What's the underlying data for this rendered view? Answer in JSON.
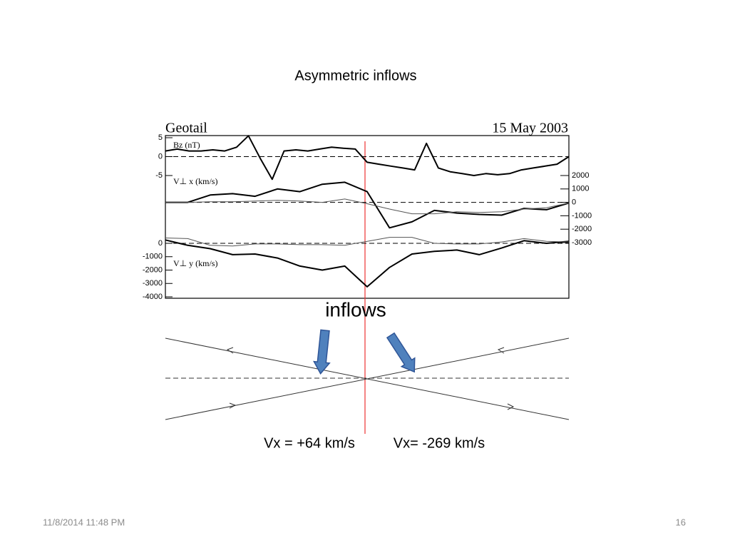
{
  "title": "Asymmetric inflows",
  "figure": {
    "header_left": "Geotail",
    "header_right": "15 May 2003"
  },
  "chart_data": [
    {
      "type": "line",
      "label": "Bz (nT)",
      "ylim": [
        -5,
        5
      ],
      "yticks": [
        -5,
        0,
        5
      ],
      "axis_side": "left",
      "series": [
        {
          "color": "#000000",
          "values": [
            1.5,
            2,
            1.5,
            1.5,
            1.8,
            1.5,
            2.5,
            5.5,
            -0.5,
            -6,
            1.5,
            1.8,
            1.5,
            2,
            2.5,
            2.2,
            2,
            -1.5,
            -2,
            -2.5,
            -3,
            -3.5,
            3.5,
            -3,
            -4,
            -4.5,
            -5,
            -4.5,
            -4.8,
            -4.5,
            -3.5,
            -3,
            -2.5,
            -2,
            0
          ]
        }
      ]
    },
    {
      "type": "line",
      "label": "V⊥ x (km/s)",
      "ylim": [
        -3000,
        2000
      ],
      "yticks": [
        -3000,
        -2000,
        -1000,
        0,
        1000,
        2000
      ],
      "axis_side": "right",
      "series": [
        {
          "color": "#000000",
          "values": [
            0,
            0,
            550,
            650,
            450,
            1000,
            800,
            1350,
            1500,
            800,
            -1900,
            -1450,
            -600,
            -800,
            -900,
            -950,
            -450,
            -550,
            -50
          ]
        },
        {
          "color": "#555555",
          "values": [
            0,
            0,
            50,
            50,
            100,
            150,
            100,
            0,
            250,
            -100,
            -500,
            -850,
            -850,
            -700,
            -750,
            -700,
            -500,
            -400,
            -50
          ]
        }
      ]
    },
    {
      "type": "line",
      "label": "V⊥ y (km/s)",
      "ylim": [
        -4000,
        0
      ],
      "yticks": [
        -4000,
        -3000,
        -2000,
        -1000,
        0
      ],
      "axis_side": "left",
      "series": [
        {
          "color": "#000000",
          "values": [
            250,
            -150,
            -400,
            -850,
            -800,
            -1100,
            -1700,
            -2000,
            -1700,
            -3250,
            -1800,
            -800,
            -600,
            -500,
            -850,
            -350,
            200,
            0,
            150
          ]
        },
        {
          "color": "#555555",
          "values": [
            400,
            350,
            -150,
            -200,
            -50,
            -50,
            -100,
            -100,
            -150,
            150,
            450,
            450,
            0,
            -50,
            -50,
            100,
            350,
            150,
            100
          ]
        }
      ]
    }
  ],
  "inflows_label": "inflows",
  "vx_left": "Vx = +64 km/s",
  "vx_right": "Vx= -269 km/s",
  "footer": {
    "date": "11/8/2014 11:48 PM",
    "page": "16"
  }
}
